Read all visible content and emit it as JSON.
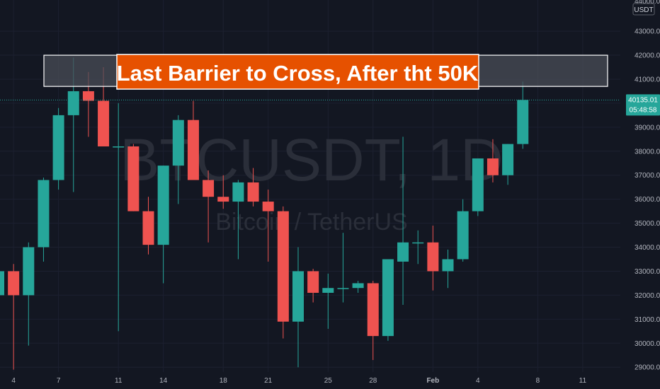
{
  "colors": {
    "background": "#131722",
    "grid": "#1c2030",
    "up": "#26a69a",
    "down": "#ef5350",
    "axis_text": "#b2b5be",
    "price_line": "#26a69a",
    "annotation_fill": "#e65100",
    "annotation_text": "#ffffff",
    "zone_fill": "#4a4d57",
    "zone_stroke": "#ffffff",
    "watermark": "#2a2e39"
  },
  "watermark": {
    "symbol": "BTCUSDT, 1D",
    "description": "Bitcoin / TetherUS"
  },
  "annotation": {
    "text": "Last Barrier to Cross, After tht 50K"
  },
  "price_scale": {
    "currency": "USDT",
    "last_price": "40135.01",
    "countdown": "05:48:58",
    "top_partial": "44000.00"
  },
  "chart_data": {
    "type": "candlestick",
    "symbol": "BTCUSDT",
    "interval": "1D",
    "ylim": [
      28800,
      44300
    ],
    "y_ticks": [
      29000,
      30000,
      31000,
      32000,
      33000,
      34000,
      35000,
      36000,
      37000,
      38000,
      39000,
      40000,
      41000,
      42000,
      43000
    ],
    "x_ticks": [
      {
        "index": 1,
        "label": "4"
      },
      {
        "index": 4,
        "label": "7"
      },
      {
        "index": 8,
        "label": "11"
      },
      {
        "index": 11,
        "label": "14"
      },
      {
        "index": 15,
        "label": "18"
      },
      {
        "index": 18,
        "label": "21"
      },
      {
        "index": 22,
        "label": "25"
      },
      {
        "index": 25,
        "label": "28"
      },
      {
        "index": 29,
        "label": "Feb"
      },
      {
        "index": 32,
        "label": "4"
      },
      {
        "index": 36,
        "label": "8"
      },
      {
        "index": 39,
        "label": "11"
      }
    ],
    "resistance_zone": [
      40700,
      42000
    ],
    "last_price": 40135.01,
    "candles": [
      {
        "o": 32000,
        "h": 33200,
        "l": 31700,
        "c": 33000
      },
      {
        "o": 33000,
        "h": 33300,
        "l": 28900,
        "c": 32000
      },
      {
        "o": 32000,
        "h": 34200,
        "l": 29900,
        "c": 34000
      },
      {
        "o": 34000,
        "h": 36900,
        "l": 33400,
        "c": 36800
      },
      {
        "o": 36800,
        "h": 39800,
        "l": 36400,
        "c": 39500
      },
      {
        "o": 39500,
        "h": 41900,
        "l": 36300,
        "c": 40500
      },
      {
        "o": 40500,
        "h": 41300,
        "l": 38600,
        "c": 40100
      },
      {
        "o": 40100,
        "h": 41500,
        "l": 38200,
        "c": 38200
      },
      {
        "o": 38200,
        "h": 40000,
        "l": 30500,
        "c": 38200
      },
      {
        "o": 38200,
        "h": 38300,
        "l": 35500,
        "c": 35500
      },
      {
        "o": 35500,
        "h": 36100,
        "l": 33700,
        "c": 34100
      },
      {
        "o": 34100,
        "h": 37400,
        "l": 32500,
        "c": 37400
      },
      {
        "o": 37400,
        "h": 39500,
        "l": 35800,
        "c": 39300
      },
      {
        "o": 39300,
        "h": 40100,
        "l": 36800,
        "c": 36800
      },
      {
        "o": 36800,
        "h": 37200,
        "l": 34200,
        "c": 36100
      },
      {
        "o": 36100,
        "h": 37000,
        "l": 35600,
        "c": 35900
      },
      {
        "o": 35900,
        "h": 36800,
        "l": 33500,
        "c": 36700
      },
      {
        "o": 36700,
        "h": 37300,
        "l": 35700,
        "c": 35900
      },
      {
        "o": 35900,
        "h": 36400,
        "l": 33400,
        "c": 35500
      },
      {
        "o": 35500,
        "h": 35700,
        "l": 30200,
        "c": 30900
      },
      {
        "o": 30900,
        "h": 34000,
        "l": 29000,
        "c": 33000
      },
      {
        "o": 33000,
        "h": 33100,
        "l": 31700,
        "c": 32100
      },
      {
        "o": 32100,
        "h": 32900,
        "l": 30600,
        "c": 32300
      },
      {
        "o": 32300,
        "h": 34600,
        "l": 31700,
        "c": 32300
      },
      {
        "o": 32300,
        "h": 32600,
        "l": 32100,
        "c": 32500
      },
      {
        "o": 32500,
        "h": 32600,
        "l": 29300,
        "c": 30300
      },
      {
        "o": 30300,
        "h": 33500,
        "l": 30100,
        "c": 33500
      },
      {
        "o": 33400,
        "h": 38600,
        "l": 31600,
        "c": 34200
      },
      {
        "o": 34200,
        "h": 34700,
        "l": 33300,
        "c": 34200
      },
      {
        "o": 34200,
        "h": 34900,
        "l": 32200,
        "c": 33000
      },
      {
        "o": 33000,
        "h": 33900,
        "l": 32300,
        "c": 33500
      },
      {
        "o": 33500,
        "h": 36000,
        "l": 33400,
        "c": 35500
      },
      {
        "o": 35500,
        "h": 37700,
        "l": 35300,
        "c": 37700
      },
      {
        "o": 37700,
        "h": 38500,
        "l": 36700,
        "c": 37000
      },
      {
        "o": 37000,
        "h": 38300,
        "l": 36600,
        "c": 38300
      },
      {
        "o": 38300,
        "h": 40900,
        "l": 38100,
        "c": 40135
      }
    ]
  }
}
